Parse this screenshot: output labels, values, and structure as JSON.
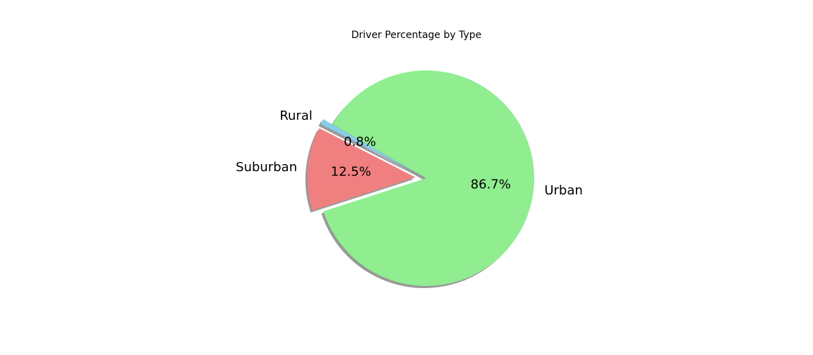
{
  "chart_data": {
    "type": "pie",
    "title": "Driver Percentage by Type",
    "slices": [
      {
        "label": "Rural",
        "value": 0.8,
        "pct_label": "0.8%",
        "color": "#87ceeb",
        "explode": 0.1
      },
      {
        "label": "Suburban",
        "value": 12.5,
        "pct_label": "12.5%",
        "color": "#f08080",
        "explode": 0.1
      },
      {
        "label": "Urban",
        "value": 86.7,
        "pct_label": "86.7%",
        "color": "#90ee90",
        "explode": 0.0
      }
    ],
    "start_angle_deg": 150,
    "shadow": true,
    "legend": "none"
  }
}
